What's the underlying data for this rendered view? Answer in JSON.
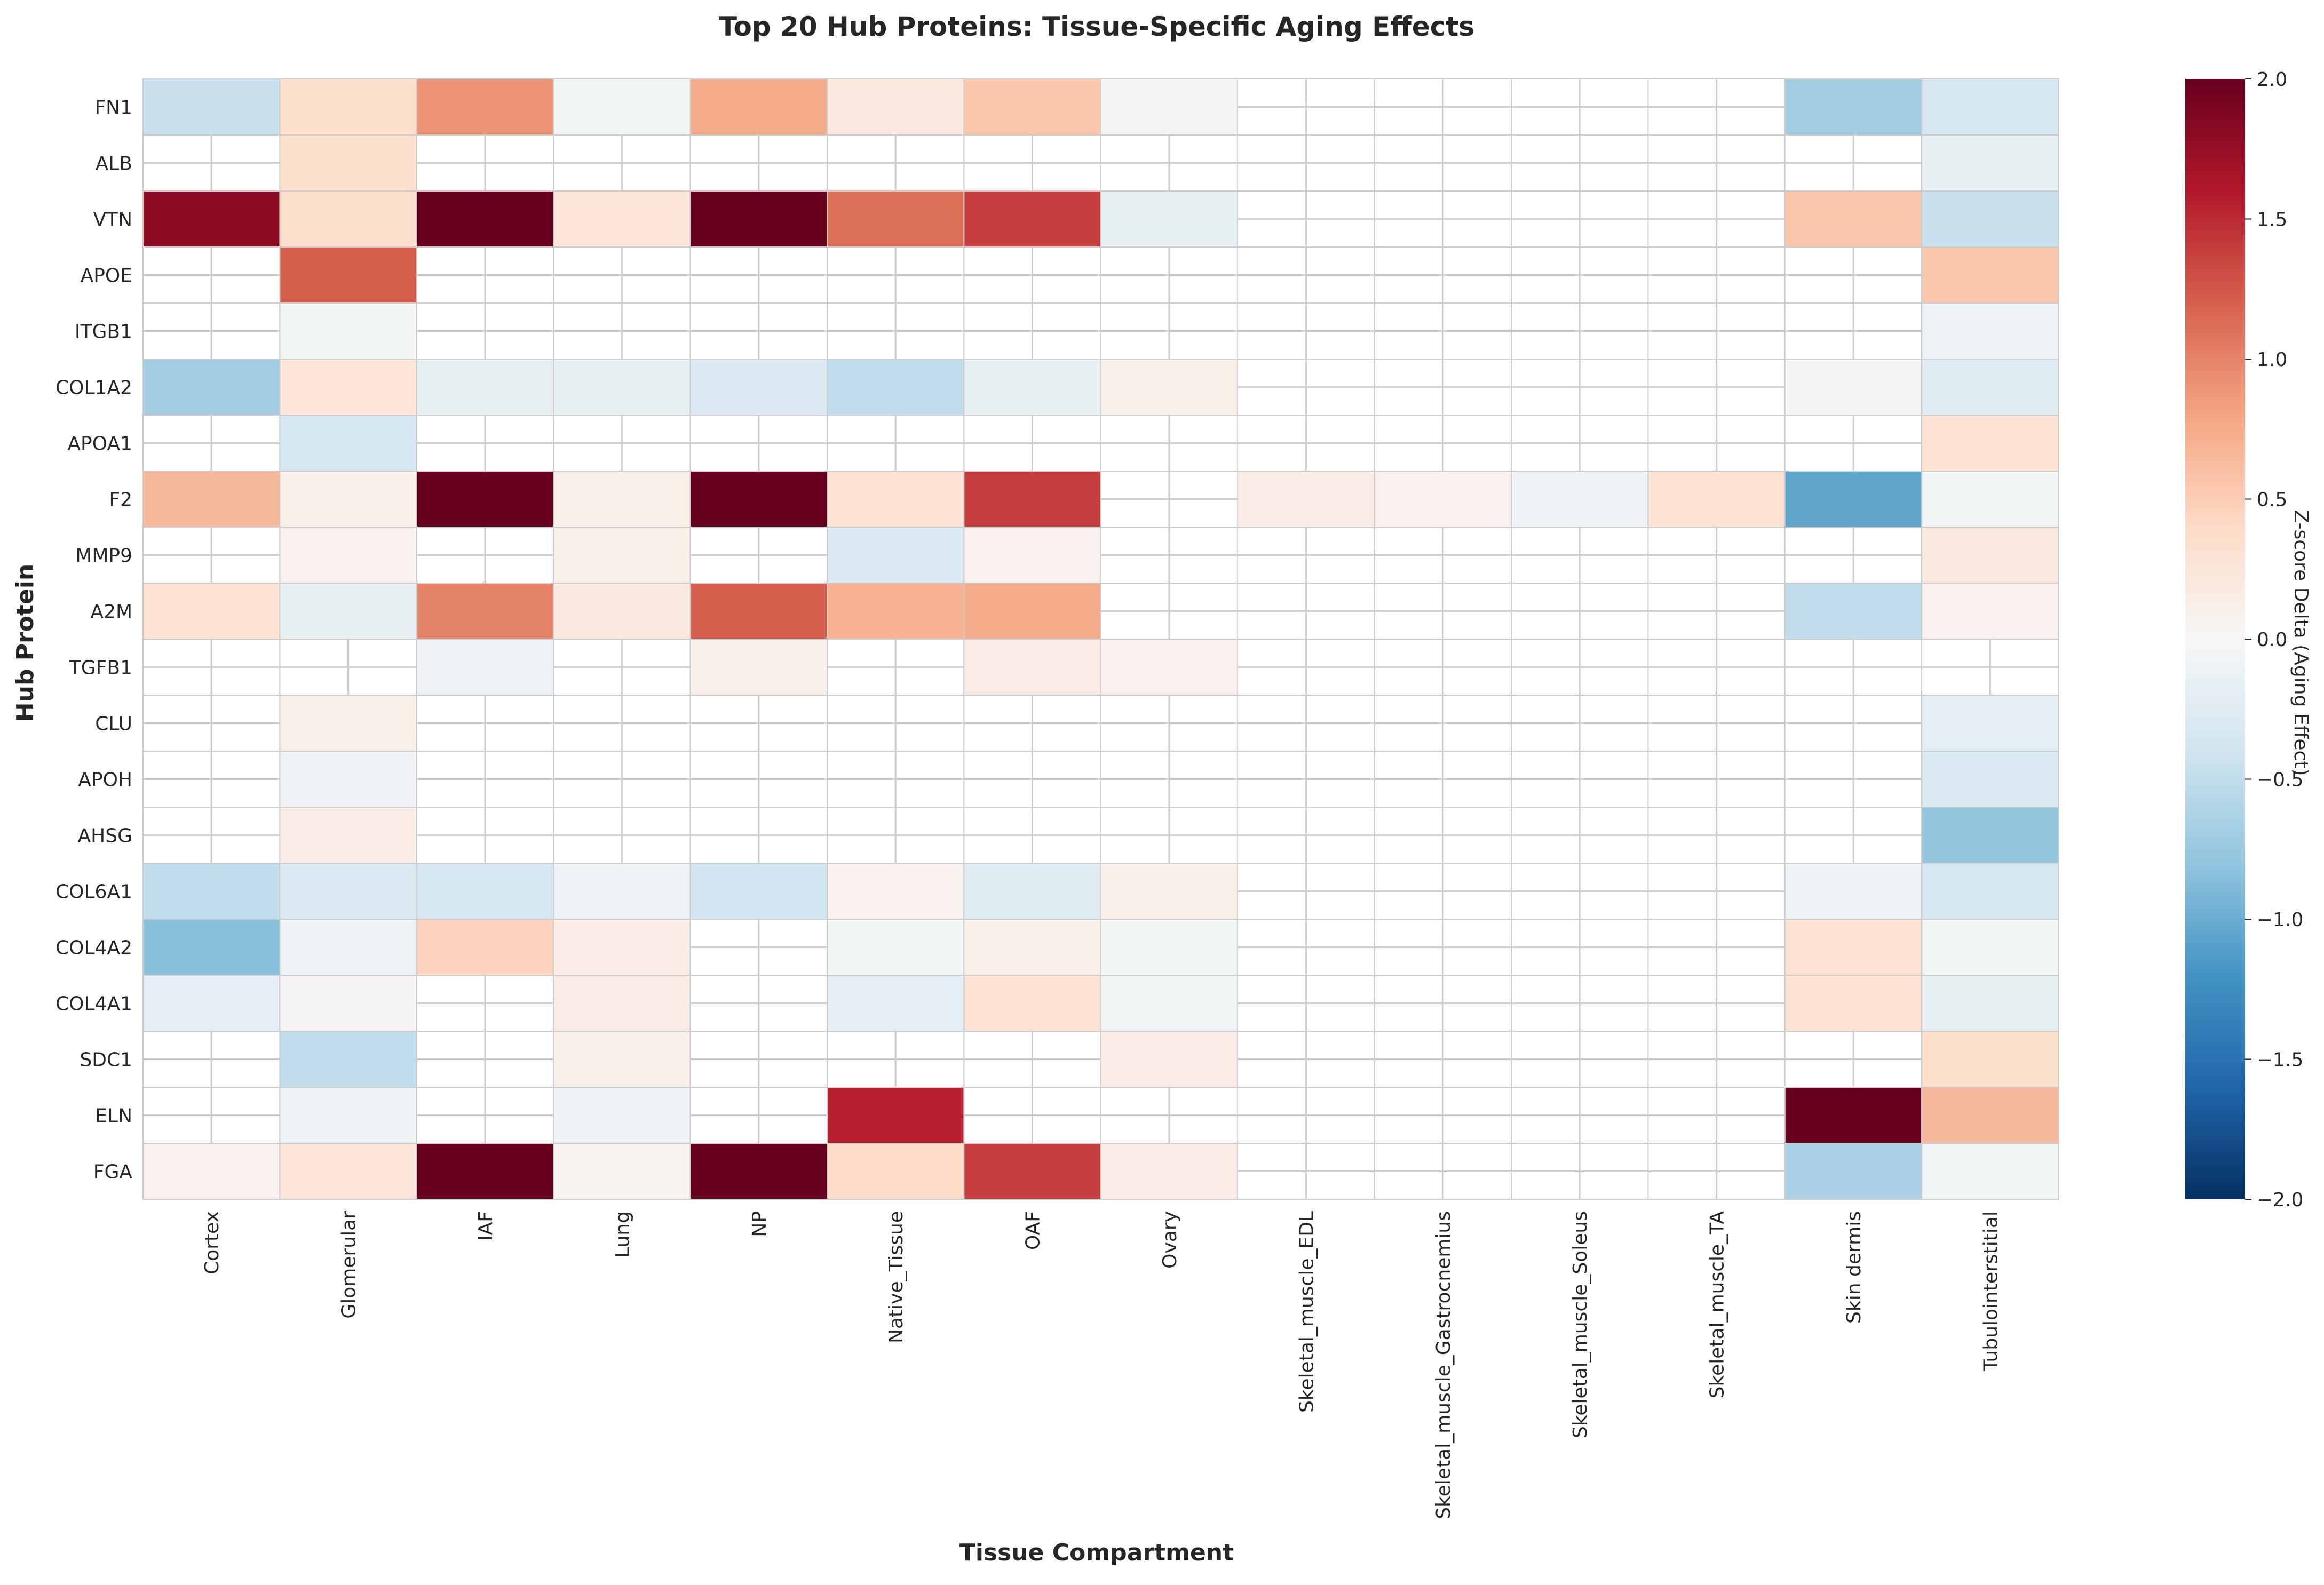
{
  "chart_data": {
    "type": "heatmap",
    "title": "Top 20 Hub Proteins: Tissue-Specific Aging Effects",
    "xlabel": "Tissue Compartment",
    "ylabel": "Hub Protein",
    "colorbar_label": "Z-score Delta (Aging Effect)",
    "colormap": "RdBu_r",
    "vmin": -2.0,
    "vmax": 2.0,
    "colorbar_ticks": [
      "2.0",
      "1.5",
      "1.0",
      "0.5",
      "0.0",
      "−0.5",
      "−1.0",
      "−1.5",
      "−2.0"
    ],
    "colorbar_tick_values": [
      2.0,
      1.5,
      1.0,
      0.5,
      0.0,
      -0.5,
      -1.0,
      -1.5,
      -2.0
    ],
    "missing_color": "#ffffff",
    "grid_color": "#cccccc",
    "columns": [
      "Cortex",
      "Glomerular",
      "IAF",
      "Lung",
      "NP",
      "Native_Tissue",
      "OAF",
      "Ovary",
      "Skeletal_muscle_EDL",
      "Skeletal_muscle_Gastrocnemius",
      "Skeletal_muscle_Soleus",
      "Skeletal_muscle_TA",
      "Skin dermis",
      "Tubulointerstitial"
    ],
    "rows": [
      "FN1",
      "ALB",
      "VTN",
      "APOE",
      "ITGB1",
      "COL1A2",
      "APOA1",
      "F2",
      "MMP9",
      "A2M",
      "TGFB1",
      "CLU",
      "APOH",
      "AHSG",
      "COL6A1",
      "COL4A2",
      "COL4A1",
      "SDC1",
      "ELN",
      "FGA"
    ],
    "values": [
      [
        -0.45,
        0.35,
        0.9,
        -0.05,
        0.75,
        0.2,
        0.55,
        -0.03,
        null,
        null,
        null,
        null,
        -0.7,
        -0.35
      ],
      [
        null,
        0.35,
        null,
        null,
        null,
        null,
        null,
        null,
        null,
        null,
        null,
        null,
        null,
        -0.15
      ],
      [
        1.8,
        0.35,
        2.1,
        0.25,
        2.1,
        1.1,
        1.4,
        -0.15,
        null,
        null,
        null,
        null,
        0.55,
        -0.45
      ],
      [
        null,
        1.2,
        null,
        null,
        null,
        null,
        null,
        null,
        null,
        null,
        null,
        null,
        null,
        0.55
      ],
      [
        null,
        -0.05,
        null,
        null,
        null,
        null,
        null,
        null,
        null,
        null,
        null,
        null,
        null,
        -0.12
      ],
      [
        -0.7,
        0.25,
        -0.15,
        -0.15,
        -0.3,
        -0.5,
        -0.15,
        0.12,
        null,
        null,
        null,
        null,
        -0.03,
        -0.25
      ],
      [
        null,
        -0.35,
        null,
        null,
        null,
        null,
        null,
        null,
        null,
        null,
        null,
        null,
        null,
        0.3
      ],
      [
        0.65,
        0.12,
        2.1,
        0.12,
        2.1,
        0.3,
        1.4,
        null,
        0.15,
        0.08,
        -0.12,
        0.3,
        -1.05,
        -0.05
      ],
      [
        null,
        0.08,
        null,
        0.12,
        null,
        -0.3,
        0.08,
        null,
        null,
        null,
        null,
        null,
        null,
        0.2
      ],
      [
        0.3,
        -0.15,
        1.0,
        0.2,
        1.2,
        0.7,
        0.75,
        null,
        null,
        null,
        null,
        null,
        -0.5,
        0.08
      ],
      [
        null,
        null,
        -0.08,
        null,
        0.1,
        null,
        0.15,
        0.08,
        null,
        null,
        null,
        null,
        null,
        null
      ],
      [
        null,
        0.12,
        null,
        null,
        null,
        null,
        null,
        null,
        null,
        null,
        null,
        null,
        null,
        -0.2
      ],
      [
        null,
        -0.08,
        null,
        null,
        null,
        null,
        null,
        null,
        null,
        null,
        null,
        null,
        null,
        -0.3
      ],
      [
        null,
        0.15,
        null,
        null,
        null,
        null,
        null,
        null,
        null,
        null,
        null,
        null,
        null,
        -0.8
      ],
      [
        -0.5,
        -0.3,
        -0.35,
        -0.12,
        -0.4,
        0.08,
        -0.25,
        0.1,
        null,
        null,
        null,
        null,
        -0.1,
        -0.35
      ],
      [
        -0.85,
        -0.12,
        0.45,
        0.15,
        null,
        -0.05,
        0.1,
        -0.05,
        null,
        null,
        null,
        null,
        0.3,
        -0.05
      ],
      [
        -0.2,
        0.03,
        null,
        0.15,
        null,
        -0.2,
        0.3,
        -0.05,
        null,
        null,
        null,
        null,
        0.3,
        -0.15
      ],
      [
        null,
        -0.5,
        null,
        0.1,
        null,
        null,
        null,
        0.15,
        null,
        null,
        null,
        null,
        null,
        0.35
      ],
      [
        null,
        -0.1,
        null,
        -0.08,
        null,
        1.55,
        null,
        null,
        null,
        null,
        null,
        null,
        2.1,
        0.65
      ],
      [
        0.08,
        0.25,
        2.1,
        0.05,
        2.1,
        0.4,
        1.4,
        0.15,
        null,
        null,
        null,
        null,
        -0.65,
        -0.05
      ]
    ]
  }
}
